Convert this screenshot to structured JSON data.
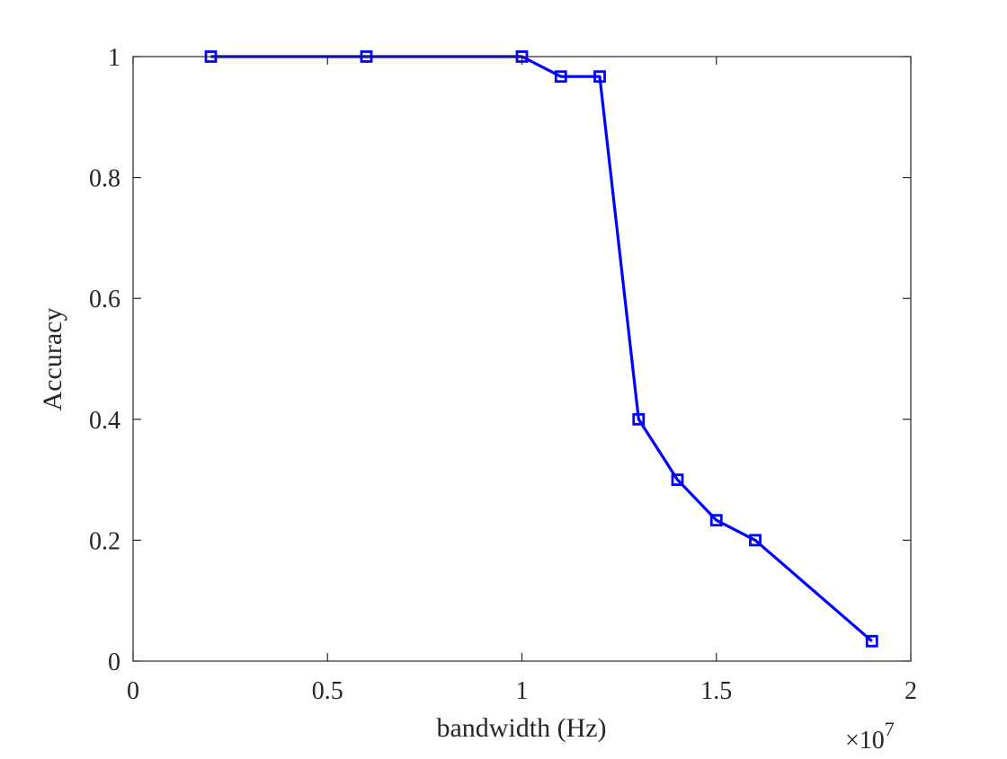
{
  "chart_data": {
    "type": "line",
    "xlabel": "bandwidth (Hz)",
    "ylabel": "Accuracy",
    "x_exponent_base": "×10",
    "x_exponent_power": "7",
    "xlim": [
      0,
      20000000
    ],
    "ylim": [
      0,
      1
    ],
    "x_tick_values": [
      0,
      5000000,
      10000000,
      15000000,
      20000000
    ],
    "x_tick_labels": [
      "0",
      "0.5",
      "1",
      "1.5",
      "2"
    ],
    "y_tick_values": [
      0,
      0.2,
      0.4,
      0.6,
      0.8,
      1
    ],
    "y_tick_labels": [
      "0",
      "0.2",
      "0.4",
      "0.6",
      "0.8",
      "1"
    ],
    "grid": false,
    "series": [
      {
        "color": "#0000ff",
        "marker": "square",
        "x": [
          2000000,
          6000000,
          10000000,
          11000000,
          12000000,
          13000000,
          14000000,
          15000000,
          16000000,
          19000000
        ],
        "y": [
          1.0,
          1.0,
          1.0,
          0.967,
          0.967,
          0.4,
          0.3,
          0.233,
          0.2,
          0.033
        ]
      }
    ]
  }
}
